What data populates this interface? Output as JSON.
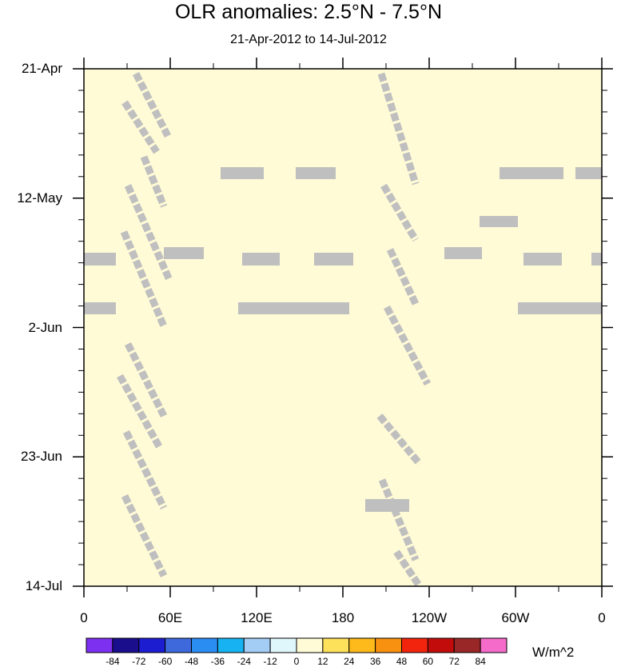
{
  "chart_data": {
    "type": "heatmap",
    "title": "OLR anomalies: 2.5°N - 7.5°N",
    "subtitle": "21-Apr-2012 to 14-Jul-2012",
    "x_ticks": [
      "0",
      "60E",
      "120E",
      "180",
      "120W",
      "60W",
      "0"
    ],
    "y_ticks": [
      "21-Apr",
      "12-May",
      "2-Jun",
      "23-Jun",
      "14-Jul"
    ],
    "colorbar_labels": [
      "-84",
      "-72",
      "-60",
      "-48",
      "-36",
      "-24",
      "-12",
      "0",
      "12",
      "24",
      "36",
      "48",
      "60",
      "72",
      "84"
    ],
    "colorbar_colors": [
      "#7e30f0",
      "#1a0e8c",
      "#1c1cd0",
      "#3e69dc",
      "#2a8df2",
      "#17b2f1",
      "#a4cdf5",
      "#dff6fb",
      "#fffbd6",
      "#fde15a",
      "#fdba1a",
      "#f99110",
      "#f2240e",
      "#c20c0c",
      "#9a2727",
      "#f56bc9"
    ],
    "units": "W/m^2",
    "missing_color": "#bfbfbf",
    "xlim": [
      0,
      360
    ],
    "ylim": [
      "21-Apr",
      "14-Jul"
    ]
  }
}
